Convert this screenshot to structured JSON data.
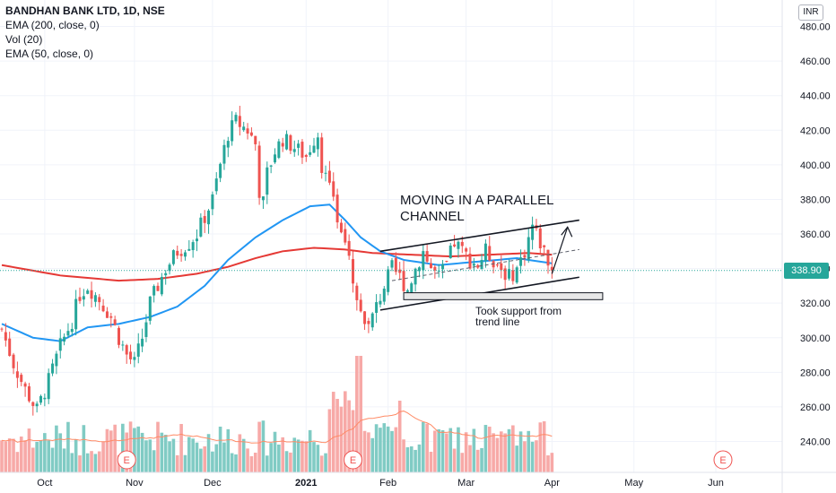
{
  "header": {
    "symbol_title": "BANDHAN BANK LTD, 1D, NSE",
    "indicators": [
      "EMA (200, close, 0)",
      "Vol (20)",
      "EMA (50, close, 0)"
    ],
    "currency": "INR"
  },
  "last_price_label": "338.90",
  "annotations": {
    "channel_title_line1": "MOVING IN A PARALLEL",
    "channel_title_line2": "CHANNEL",
    "support_line1": "Took support from",
    "support_line2": "trend line"
  },
  "earnings_marker": "E",
  "colors": {
    "up": "#26a69a",
    "down": "#ef5350",
    "vol_up": "#80cbc4",
    "vol_down": "#f7a9a7",
    "ema50": "#2196f3",
    "ema200": "#e53935",
    "vol_ma": "#ff8a65",
    "grid": "#f0f3fa"
  },
  "chart_data": {
    "type": "candlestick",
    "title": "BANDHAN BANK LTD, 1D, NSE",
    "ylim": [
      220,
      490
    ],
    "y_ticks": [
      240,
      260,
      280,
      300,
      320,
      340,
      360,
      380,
      400,
      420,
      440,
      460,
      480
    ],
    "y_tick_labels": [
      "240.00",
      "260.00",
      "280.00",
      "300.00",
      "320.00",
      "340.00",
      "360.00",
      "380.00",
      "400.00",
      "420.00",
      "440.00",
      "460.00",
      "480.00"
    ],
    "x_labels": [
      "Oct",
      "Nov",
      "Dec",
      "2021",
      "Feb",
      "Mar",
      "Apr",
      "May",
      "Jun"
    ],
    "last_price": 338.9,
    "anchors": [
      [
        0,
        305
      ],
      [
        3,
        285
      ],
      [
        6,
        270
      ],
      [
        9,
        258
      ],
      [
        12,
        275
      ],
      [
        15,
        295
      ],
      [
        18,
        310
      ],
      [
        20,
        325
      ],
      [
        22,
        330
      ],
      [
        25,
        322
      ],
      [
        28,
        312
      ],
      [
        30,
        300
      ],
      [
        32,
        290
      ],
      [
        34,
        285
      ],
      [
        36,
        300
      ],
      [
        38,
        320
      ],
      [
        40,
        330
      ],
      [
        42,
        340
      ],
      [
        45,
        350
      ],
      [
        48,
        355
      ],
      [
        50,
        360
      ],
      [
        52,
        370
      ],
      [
        54,
        380
      ],
      [
        55,
        390
      ],
      [
        56,
        400
      ],
      [
        58,
        418
      ],
      [
        60,
        425
      ],
      [
        63,
        420
      ],
      [
        65,
        412
      ],
      [
        66,
        385
      ],
      [
        67,
        378
      ],
      [
        68,
        395
      ],
      [
        70,
        408
      ],
      [
        72,
        415
      ],
      [
        75,
        410
      ],
      [
        78,
        405
      ],
      [
        80,
        415
      ],
      [
        81,
        418
      ],
      [
        82,
        400
      ],
      [
        84,
        385
      ],
      [
        86,
        370
      ],
      [
        88,
        360
      ],
      [
        89,
        350
      ],
      [
        90,
        335
      ],
      [
        92,
        318
      ],
      [
        94,
        306
      ],
      [
        96,
        318
      ],
      [
        98,
        330
      ],
      [
        100,
        340
      ],
      [
        102,
        335
      ],
      [
        104,
        328
      ],
      [
        106,
        340
      ],
      [
        108,
        350
      ],
      [
        110,
        340
      ],
      [
        112,
        335
      ],
      [
        114,
        342
      ],
      [
        116,
        355
      ],
      [
        118,
        350
      ],
      [
        120,
        345
      ],
      [
        122,
        342
      ],
      [
        124,
        350
      ],
      [
        126,
        345
      ],
      [
        128,
        340
      ],
      [
        130,
        335
      ],
      [
        132,
        340
      ],
      [
        134,
        350
      ],
      [
        136,
        365
      ],
      [
        138,
        355
      ],
      [
        140,
        345
      ],
      [
        141,
        339
      ]
    ],
    "ema50_anchors": [
      [
        0,
        308
      ],
      [
        8,
        300
      ],
      [
        15,
        298
      ],
      [
        22,
        306
      ],
      [
        30,
        308
      ],
      [
        38,
        312
      ],
      [
        45,
        318
      ],
      [
        52,
        330
      ],
      [
        58,
        345
      ],
      [
        65,
        358
      ],
      [
        72,
        368
      ],
      [
        79,
        376
      ],
      [
        84,
        377
      ],
      [
        88,
        368
      ],
      [
        92,
        358
      ],
      [
        97,
        350
      ],
      [
        103,
        345
      ],
      [
        112,
        342
      ],
      [
        122,
        344
      ],
      [
        132,
        346
      ],
      [
        141,
        343
      ]
    ],
    "ema200_anchors": [
      [
        0,
        342
      ],
      [
        15,
        336
      ],
      [
        30,
        333
      ],
      [
        40,
        334
      ],
      [
        50,
        337
      ],
      [
        58,
        341
      ],
      [
        65,
        346
      ],
      [
        72,
        350
      ],
      [
        80,
        352
      ],
      [
        88,
        351
      ],
      [
        95,
        349
      ],
      [
        105,
        348
      ],
      [
        115,
        347
      ],
      [
        125,
        348
      ],
      [
        135,
        349
      ],
      [
        141,
        348
      ]
    ],
    "volume_note": "volume bars drawn below price; spike near late January",
    "earnings_markers_at_index": [
      32,
      90,
      184
    ],
    "trendlines": {
      "upper_channel": [
        [
          97,
          350
        ],
        [
          148,
          368
        ]
      ],
      "lower_channel": [
        [
          97,
          316
        ],
        [
          148,
          335
        ]
      ],
      "mid_channel": [
        [
          100,
          333
        ],
        [
          148,
          351
        ]
      ],
      "arrow": [
        [
          141,
          337
        ],
        [
          145,
          364
        ]
      ],
      "support_zone": {
        "x": [
          103,
          154
        ],
        "y": [
          322,
          326
        ]
      }
    }
  }
}
